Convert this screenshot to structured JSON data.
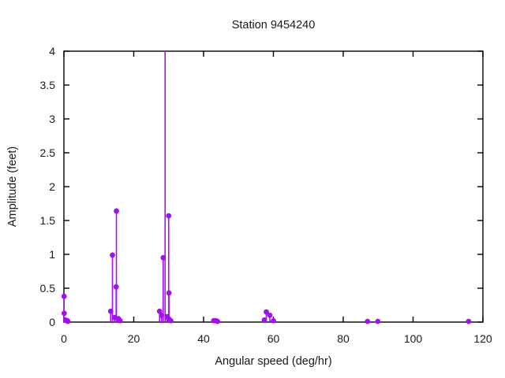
{
  "chart_data": {
    "type": "stem",
    "title": "Station 9454240",
    "xlabel": "Angular speed (deg/hr)",
    "ylabel": "Amplitude (feet)",
    "xlim": [
      0,
      120
    ],
    "ylim": [
      0,
      4
    ],
    "x_ticks": [
      0,
      20,
      40,
      60,
      80,
      100,
      120
    ],
    "y_ticks": [
      0,
      0.5,
      1,
      1.5,
      2,
      2.5,
      3,
      3.5,
      4
    ],
    "grid": false,
    "legend": null,
    "colors": {
      "series": "#A010F0",
      "axis": "#000000",
      "text": "#1a1a1a"
    },
    "points": [
      {
        "x": 0.04,
        "y": 0.38
      },
      {
        "x": 0.08,
        "y": 0.13
      },
      {
        "x": 0.5,
        "y": 0.03
      },
      {
        "x": 1.0,
        "y": 0.02
      },
      {
        "x": 1.1,
        "y": 0.01
      },
      {
        "x": 13.4,
        "y": 0.16
      },
      {
        "x": 13.9,
        "y": 0.99
      },
      {
        "x": 14.5,
        "y": 0.07
      },
      {
        "x": 14.96,
        "y": 0.52
      },
      {
        "x": 15.04,
        "y": 1.64
      },
      {
        "x": 15.6,
        "y": 0.05
      },
      {
        "x": 16.1,
        "y": 0.02
      },
      {
        "x": 27.4,
        "y": 0.16
      },
      {
        "x": 27.97,
        "y": 0.1
      },
      {
        "x": 28.44,
        "y": 0.95
      },
      {
        "x": 28.98,
        "y": 4.0,
        "clipped": true
      },
      {
        "x": 29.53,
        "y": 0.08
      },
      {
        "x": 29.96,
        "y": 0.05
      },
      {
        "x": 30.0,
        "y": 1.57
      },
      {
        "x": 30.08,
        "y": 0.43
      },
      {
        "x": 30.6,
        "y": 0.02
      },
      {
        "x": 42.9,
        "y": 0.02
      },
      {
        "x": 43.5,
        "y": 0.02
      },
      {
        "x": 44.0,
        "y": 0.01
      },
      {
        "x": 57.4,
        "y": 0.03
      },
      {
        "x": 57.97,
        "y": 0.15
      },
      {
        "x": 58.98,
        "y": 0.1
      },
      {
        "x": 60.0,
        "y": 0.02
      },
      {
        "x": 86.95,
        "y": 0.01
      },
      {
        "x": 89.9,
        "y": 0.01
      },
      {
        "x": 115.9,
        "y": 0.01
      }
    ]
  }
}
